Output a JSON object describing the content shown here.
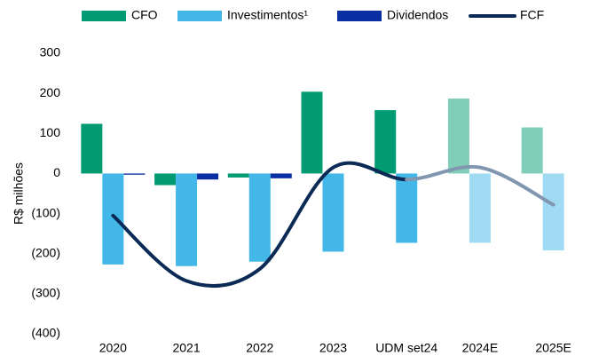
{
  "chart_data": {
    "type": "bar",
    "y_label": "R$ milhões",
    "categories": [
      "2020",
      "2021",
      "2022",
      "2023",
      "UDM set24",
      "2024E",
      "2025E"
    ],
    "series": [
      {
        "name": "CFO",
        "color": "#009b72",
        "colors": [
          "#009b72",
          "#009b72",
          "#009b72",
          "#009b72",
          "#009b72",
          "#80cdb8",
          "#80cdb8"
        ],
        "values": [
          124,
          -29,
          -10,
          204,
          158,
          187,
          115
        ]
      },
      {
        "name": "Investimentos¹",
        "color": "#43b7e8",
        "colors": [
          "#43b7e8",
          "#43b7e8",
          "#43b7e8",
          "#43b7e8",
          "#43b7e8",
          "#a1dbf3",
          "#a1dbf3"
        ],
        "values": [
          -227,
          -231,
          -220,
          -195,
          -173,
          -173,
          -192
        ]
      },
      {
        "name": "Dividendos",
        "color": "#0a2fa3",
        "colors": [
          "#0a2fa3",
          "#0a2fa3",
          "#0a2fa3",
          "#0a2fa3",
          "#0a2fa3",
          "#0a2fa3",
          "#0a2fa3"
        ],
        "values": [
          -3,
          -15,
          -12,
          null,
          null,
          null,
          null
        ]
      },
      {
        "name": "FCF",
        "type": "line",
        "color": "#0b2a55",
        "colors": [
          "#0b2a55",
          "#0b2a55",
          "#0b2a55",
          "#0b2a55",
          "#0b2a55",
          "#8197b0",
          "#8197b0"
        ],
        "values": [
          -105,
          -268,
          -238,
          15,
          -15,
          15,
          -78
        ]
      }
    ],
    "ylim": [
      -400,
      300
    ],
    "yticks": [
      300,
      200,
      100,
      0,
      {
        "value": -100,
        "label": "(100)"
      },
      {
        "value": -200,
        "label": "(200)"
      },
      {
        "value": -300,
        "label": "(300)"
      },
      {
        "value": -400,
        "label": "(400)"
      }
    ],
    "grid": false,
    "legend": "top"
  }
}
